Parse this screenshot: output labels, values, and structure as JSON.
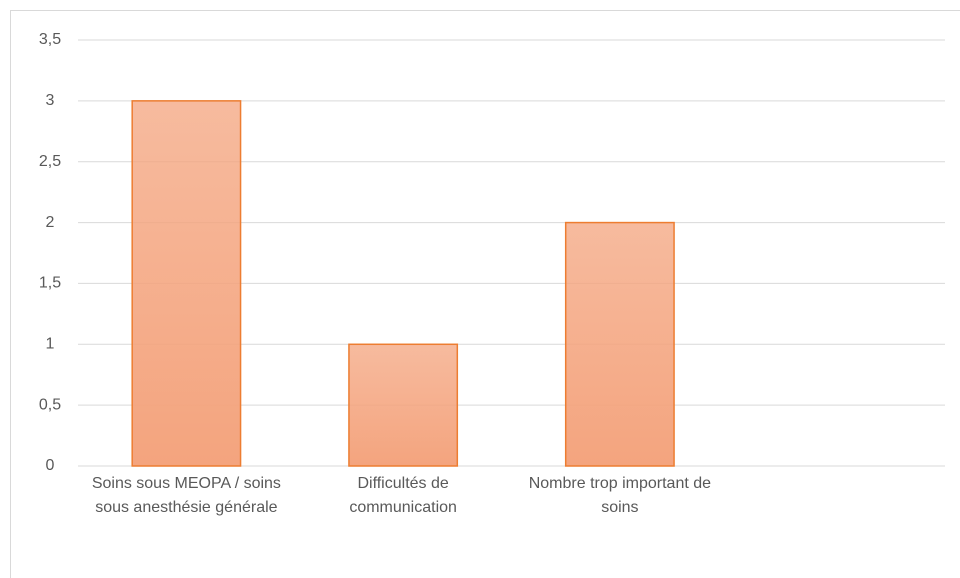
{
  "chart_data": {
    "type": "bar",
    "categories": [
      "Soins sous MEOPA / soins sous anesthésie générale",
      "Difficultés de communication",
      "Nombre trop important de soins",
      null
    ],
    "values": [
      3,
      1,
      2,
      null
    ],
    "color": "#f4a47e",
    "edge_color": "#ed7d31",
    "ylim": [
      0,
      3.5
    ],
    "yticks": [
      0,
      {
        "value": 0.5,
        "label": "0,5"
      },
      1,
      {
        "value": 1.5,
        "label": "1,5"
      },
      2,
      {
        "value": 2.5,
        "label": "2,5"
      },
      3,
      {
        "value": 3.5,
        "label": "3,5"
      }
    ],
    "grid": true
  }
}
